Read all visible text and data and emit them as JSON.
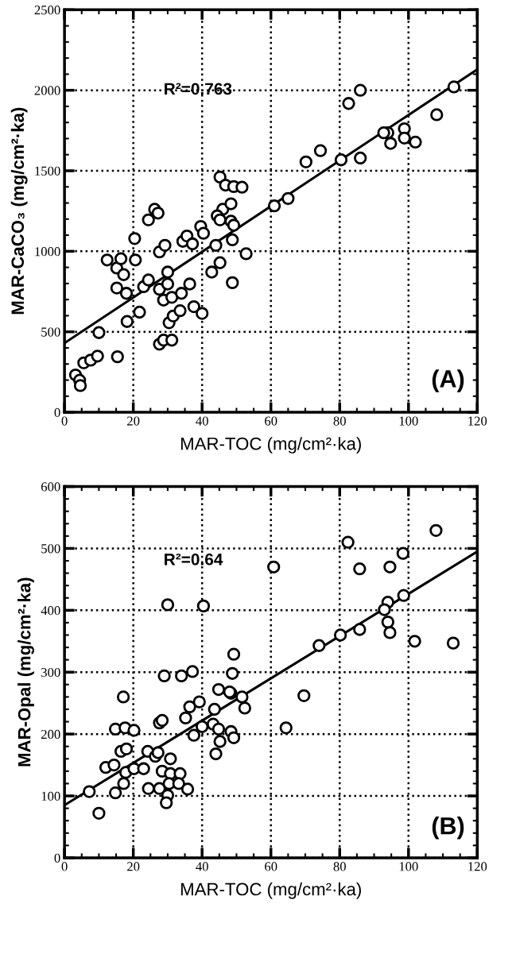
{
  "chart_data": [
    {
      "type": "scatter",
      "xlabel": "MAR-TOC (mg/cm²·ka)",
      "ylabel": "MAR-CaCO₃ (mg/cm²·ka)",
      "xlim": [
        0,
        120
      ],
      "ylim": [
        0,
        2500
      ],
      "xticks": [
        0,
        20,
        40,
        60,
        80,
        100,
        120
      ],
      "yticks": [
        0,
        500,
        1000,
        1500,
        2000,
        2500
      ],
      "grid": true,
      "annotations": [
        "R²=0.763",
        "(A)"
      ],
      "series": [
        {
          "color": "#000000",
          "marker": "circle",
          "x": [
            3.2,
            4.4,
            4.6,
            5.6,
            7.6,
            9.6,
            10,
            15.4,
            12.4,
            15.2,
            16.4,
            17.2,
            15.2,
            18,
            20.4,
            20.6,
            18.2,
            21.8,
            23,
            24.4,
            24.4,
            26.2,
            27.2,
            27.6,
            29.2,
            27.6,
            30,
            30,
            28.8,
            31.2,
            30.4,
            31.6,
            33.6,
            34,
            36.4,
            37.6,
            40,
            27.6,
            28.8,
            31.2,
            34.4,
            35.6,
            37.2,
            39.6,
            40.4,
            42.8,
            45.2,
            44,
            45.2,
            46.8,
            49.2,
            46,
            48.4,
            44.4,
            45.2,
            48.4,
            49.2,
            48.8,
            48.8,
            51.6,
            52.8,
            61,
            65,
            70.2,
            74.4,
            80.4,
            82.6,
            86,
            86,
            94,
            94.8,
            98.8,
            98.8,
            102,
            92.8,
            108.2,
            113.2
          ],
          "values": [
            232,
            199,
            166,
            307,
            324,
            349,
            495,
            345,
            946,
            896,
            954,
            855,
            772,
            739,
            1079,
            946,
            564,
            622,
            780,
            822,
            1195,
            1261,
            1237,
            996,
            1037,
            764,
            871,
            797,
            697,
            714,
            556,
            598,
            631,
            739,
            797,
            656,
            614,
            423,
            448,
            448,
            1062,
            1095,
            1046,
            1154,
            1112,
            871,
            929,
            1037,
            1461,
            1411,
            1402,
            1261,
            1295,
            1220,
            1195,
            1187,
            1162,
            1071,
            805,
            1398,
            985,
            1282,
            1328,
            1555,
            1625,
            1568,
            1918,
            2000,
            1579,
            1736,
            1670,
            1761,
            1703,
            1678,
            1736,
            1848,
            2021
          ]
        },
        {
          "type": "line",
          "color": "#000000",
          "x": [
            0,
            120
          ],
          "values": [
            430,
            2130
          ]
        }
      ]
    },
    {
      "type": "scatter",
      "xlabel": "MAR-TOC (mg/cm²·ka)",
      "ylabel": "MAR-Opal (mg/cm²·ka)",
      "xlim": [
        0,
        120
      ],
      "ylim": [
        0,
        600
      ],
      "xticks": [
        0,
        20,
        40,
        60,
        80,
        100,
        120
      ],
      "yticks": [
        0,
        100,
        200,
        300,
        400,
        500,
        600
      ],
      "grid": true,
      "annotations": [
        "R²=0.64",
        "(B)"
      ],
      "series": [
        {
          "color": "#000000",
          "marker": "circle",
          "x": [
            7.2,
            10,
            12,
            14.4,
            14.8,
            17.2,
            17.8,
            16.4,
            18,
            14.8,
            17.6,
            20.2,
            17.1,
            20.2,
            23,
            24.2,
            26.4,
            27.2,
            24.4,
            27.6,
            28.4,
            30.8,
            33.6,
            30.8,
            30.4,
            33.2,
            35.8,
            30,
            29.6,
            27.6,
            28.4,
            29,
            34,
            37.2,
            30,
            40.4,
            35.2,
            36.4,
            39.2,
            37.6,
            40,
            43.6,
            44.8,
            48.4,
            48.8,
            49.2,
            43.2,
            44.8,
            45.2,
            44,
            48.4,
            49.2,
            48,
            51.6,
            52.4,
            60.8,
            69.6,
            64.4,
            74,
            80.2,
            82.4,
            85.8,
            85.8,
            94.6,
            98.4,
            94,
            93,
            94,
            94.6,
            98.6,
            101.8,
            108,
            113
          ],
          "values": [
            107,
            72,
            146,
            150,
            105,
            120,
            138,
            172,
            176,
            208,
            210,
            206,
            260,
            144,
            144,
            172,
            164,
            170,
            112,
            112,
            140,
            136,
            136,
            160,
            120,
            120,
            111,
            101,
            89,
            218,
            222,
            294,
            294,
            301,
            409,
            407,
            226,
            244,
            252,
            198,
            212,
            240,
            272,
            266,
            298,
            329,
            216,
            208,
            188,
            168,
            204,
            194,
            268,
            260,
            242,
            470,
            262,
            210,
            343,
            360,
            510,
            467,
            369,
            470,
            492,
            413,
            401,
            381,
            364,
            424,
            350,
            529,
            347
          ]
        },
        {
          "type": "line",
          "color": "#000000",
          "x": [
            0,
            120
          ],
          "values": [
            85,
            495
          ]
        }
      ]
    }
  ]
}
